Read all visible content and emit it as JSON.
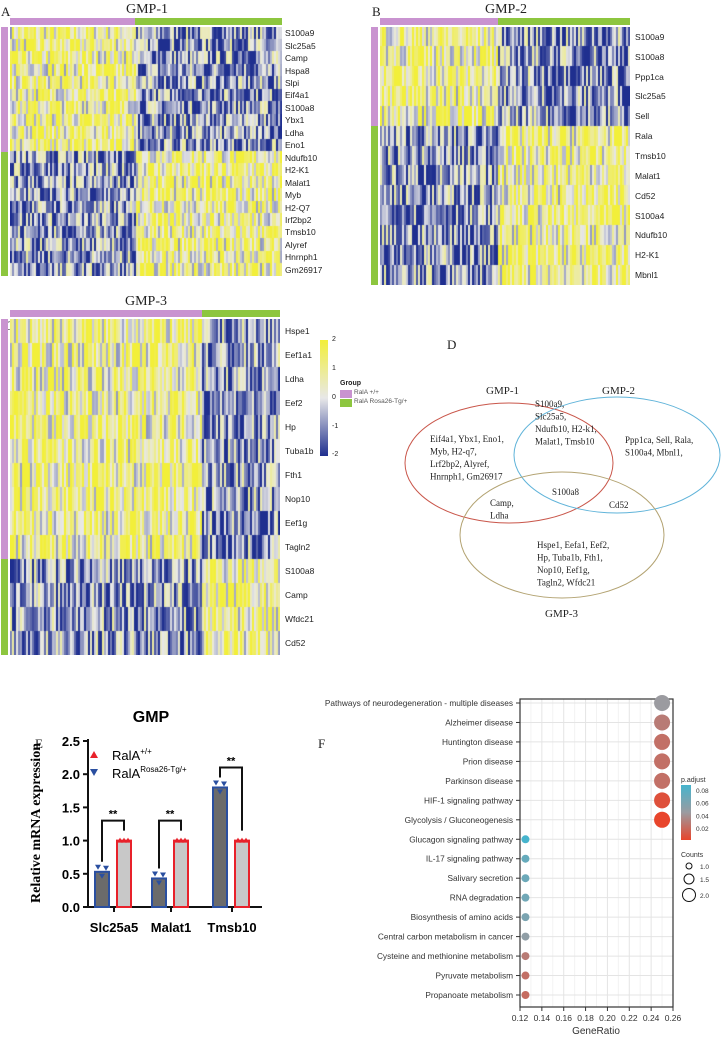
{
  "panels": {
    "A": "A",
    "B": "B",
    "C": "C",
    "D": "D",
    "E": "E",
    "F": "F"
  },
  "heatmaps": [
    {
      "title": "GMP-1",
      "groups_split": 0.46,
      "row_split": 10,
      "genes": [
        "S100a9",
        "Slc25a5",
        "Camp",
        "Hspa8",
        "Slpi",
        "Eif4a1",
        "S100a8",
        "Ybx1",
        "Ldha",
        "Eno1",
        "Ndufb10",
        "H2-K1",
        "Malat1",
        "Myb",
        "H2-Q7",
        "Irf2bp2",
        "Tmsb10",
        "Alyref",
        "Hnrnph1",
        "Gm26917"
      ]
    },
    {
      "title": "GMP-2",
      "groups_split": 0.47,
      "row_split": 5,
      "genes": [
        "S100a9",
        "S100a8",
        "Ppp1ca",
        "Slc25a5",
        "Sell",
        "Rala",
        "Tmsb10",
        "Malat1",
        "Cd52",
        "S100a4",
        "Ndufb10",
        "H2-K1",
        "Mbnl1"
      ]
    },
    {
      "title": "GMP-3",
      "groups_split": 0.71,
      "row_split": 10,
      "genes": [
        "Hspe1",
        "Eef1a1",
        "Ldha",
        "Eef2",
        "Hp",
        "Tuba1b",
        "Fth1",
        "Nop10",
        "Eef1g",
        "Tagln2",
        "S100a8",
        "Camp",
        "Wfdc21",
        "Cd52"
      ]
    }
  ],
  "heatmap_legend": {
    "scale_ticks": [
      "2",
      "1",
      "0",
      "-1",
      "-2"
    ],
    "group_title": "Group",
    "groups": [
      {
        "label": "RalA +/+",
        "color": "#c993d0"
      },
      {
        "label": "RalA Rosa26-Tg/+",
        "color": "#8dc63f"
      }
    ],
    "low_color": "#1f2f8f",
    "mid_color": "#e8e8e8",
    "high_color": "#f2ef3a"
  },
  "venn": {
    "sets": [
      {
        "label": "GMP-1",
        "color": "#c9564a"
      },
      {
        "label": "GMP-2",
        "color": "#5fb3d9"
      },
      {
        "label": "GMP-3",
        "color": "#b3a372"
      }
    ],
    "only1": [
      "Eif4a1, Ybx1, Eno1,",
      "Myb, H2-q7,",
      "Lrf2bp2, Alyref,",
      "Hnrnph1, Gm26917"
    ],
    "only2": [
      "Ppp1ca, Sell, Rala,",
      "S100a4, Mbnl1,"
    ],
    "only3": [
      "Hspe1, Eefa1, Eef2,",
      "Hp, Tuba1b, Fth1,",
      "Nop10, Eef1g,",
      "Tagln2, Wfdc21"
    ],
    "i12": [
      "S100a9,",
      "Slc25a5,",
      "Ndufb10, H2-k1,",
      "Malat1, Tmsb10"
    ],
    "i13": [
      "Camp,",
      "Ldha"
    ],
    "i23": [
      "Cd52"
    ],
    "i123": [
      "S100a8"
    ]
  },
  "chart_data": [
    {
      "type": "bar",
      "title": "GMP",
      "ylabel": "Relative  mRNA expression",
      "xlabel": "",
      "ylim": [
        0,
        2.5
      ],
      "yticks": [
        "0.0",
        "0.5",
        "1.0",
        "1.5",
        "2.0",
        "2.5"
      ],
      "categories": [
        "Slc25a5",
        "Malat1",
        "Tmsb10"
      ],
      "series": [
        {
          "name": "RalA+/+",
          "sup": "+/+",
          "base": "RalA",
          "values": [
            1.0,
            1.0,
            1.0
          ],
          "color": "#e8212a",
          "fill": "#c8c8c8"
        },
        {
          "name": "RalARosa26-Tg/+",
          "sup": "Rosa26-Tg/+",
          "base": "RalA",
          "values": [
            0.53,
            0.43,
            1.8
          ],
          "color": "#2a4fa0",
          "fill": "#6b6b6b"
        }
      ],
      "significance": [
        "**",
        "**",
        "**"
      ]
    },
    {
      "type": "scatter",
      "xlabel": "GeneRatio",
      "xlim": [
        0.12,
        0.26
      ],
      "xticks": [
        "0.12",
        "0.14",
        "0.16",
        "0.18",
        "0.20",
        "0.22",
        "0.24",
        "0.26"
      ],
      "terms": [
        "Pathways of neurodegeneration - multiple diseases",
        "Alzheimer disease",
        "Huntington disease",
        "Prion disease",
        "Parkinson disease",
        "HIF-1 signaling pathway",
        "Glycolysis / Gluconeogenesis",
        "Glucagon signaling pathway",
        "IL-17 signaling pathway",
        "Salivary secretion",
        "RNA degradation",
        "Biosynthesis of amino acids",
        "Central carbon metabolism in cancer",
        "Cysteine and methionine metabolism",
        "Pyruvate metabolism",
        "Propanoate metabolism"
      ],
      "gene_ratio": [
        0.25,
        0.25,
        0.25,
        0.25,
        0.25,
        0.25,
        0.25,
        0.125,
        0.125,
        0.125,
        0.125,
        0.125,
        0.125,
        0.125,
        0.125,
        0.125
      ],
      "counts": [
        2,
        2,
        2,
        2,
        2,
        2,
        2,
        1,
        1,
        1,
        1,
        1,
        1,
        1,
        1,
        1
      ],
      "p_adjust": [
        0.05,
        0.035,
        0.03,
        0.03,
        0.03,
        0.015,
        0.01,
        0.09,
        0.075,
        0.072,
        0.07,
        0.065,
        0.055,
        0.035,
        0.03,
        0.028
      ],
      "color_legend": {
        "title": "p.adjust",
        "ticks": [
          "0.08",
          "0.06",
          "0.04",
          "0.02"
        ]
      },
      "size_legend": {
        "title": "Counts",
        "ticks": [
          "1.0",
          "1.5",
          "2.0"
        ]
      }
    }
  ]
}
